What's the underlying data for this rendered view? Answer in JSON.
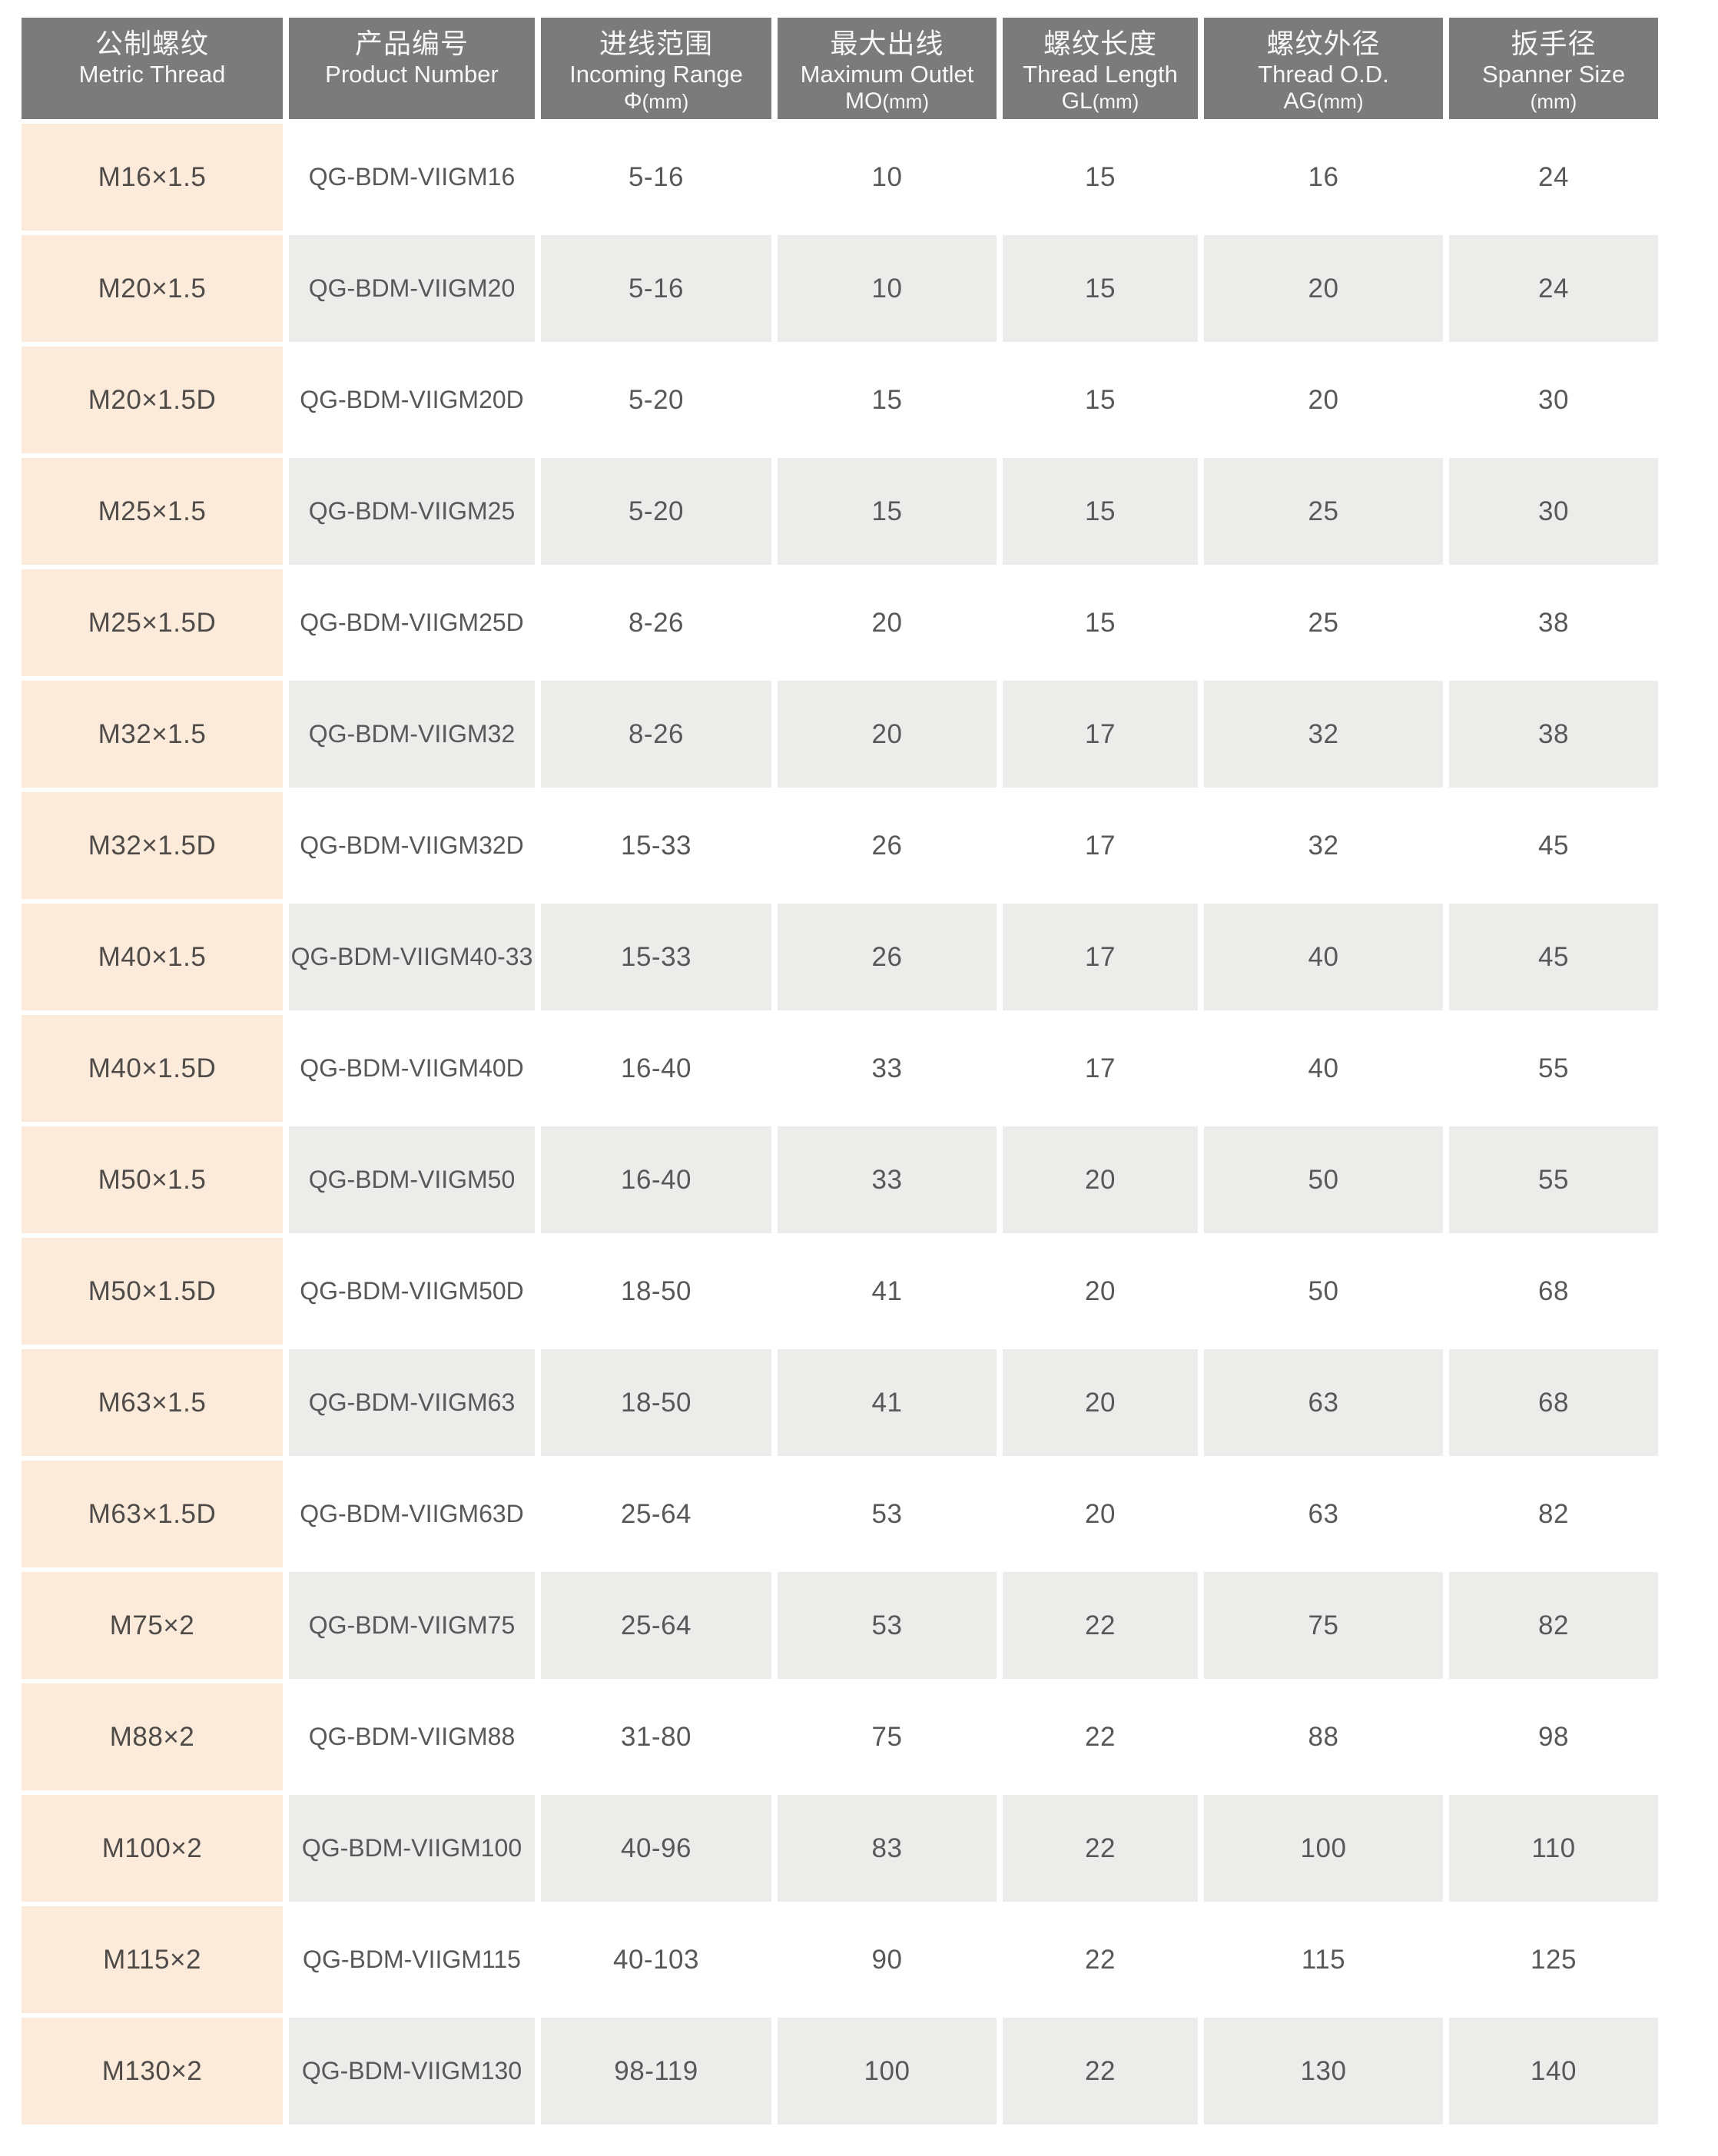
{
  "table": {
    "header": {
      "columns": [
        {
          "zh": "公制螺纹",
          "en": "Metric Thread",
          "unit_big": "",
          "unit_small": ""
        },
        {
          "zh": "产品编号",
          "en": "Product Number",
          "unit_big": "",
          "unit_small": ""
        },
        {
          "zh": "进线范围",
          "en": "Incoming Range",
          "unit_big": "Φ",
          "unit_small": "(mm)"
        },
        {
          "zh": "最大出线",
          "en": "Maximum Outlet",
          "unit_big": "MO",
          "unit_small": "(mm)"
        },
        {
          "zh": "螺纹长度",
          "en": "Thread Length",
          "unit_big": "GL",
          "unit_small": "(mm)"
        },
        {
          "zh": "螺纹外径",
          "en": "Thread O.D.",
          "unit_big": "AG",
          "unit_small": "(mm)"
        },
        {
          "zh": "扳手径",
          "en": "Spanner Size",
          "unit_big": "",
          "unit_small": "(mm)"
        }
      ]
    },
    "rows": [
      [
        "M16×1.5",
        "QG-BDM-VIIGM16",
        "5-16",
        "10",
        "15",
        "16",
        "24"
      ],
      [
        "M20×1.5",
        "QG-BDM-VIIGM20",
        "5-16",
        "10",
        "15",
        "20",
        "24"
      ],
      [
        "M20×1.5D",
        "QG-BDM-VIIGM20D",
        "5-20",
        "15",
        "15",
        "20",
        "30"
      ],
      [
        "M25×1.5",
        "QG-BDM-VIIGM25",
        "5-20",
        "15",
        "15",
        "25",
        "30"
      ],
      [
        "M25×1.5D",
        "QG-BDM-VIIGM25D",
        "8-26",
        "20",
        "15",
        "25",
        "38"
      ],
      [
        "M32×1.5",
        "QG-BDM-VIIGM32",
        "8-26",
        "20",
        "17",
        "32",
        "38"
      ],
      [
        "M32×1.5D",
        "QG-BDM-VIIGM32D",
        "15-33",
        "26",
        "17",
        "32",
        "45"
      ],
      [
        "M40×1.5",
        "QG-BDM-VIIGM40-33",
        "15-33",
        "26",
        "17",
        "40",
        "45"
      ],
      [
        "M40×1.5D",
        "QG-BDM-VIIGM40D",
        "16-40",
        "33",
        "17",
        "40",
        "55"
      ],
      [
        "M50×1.5",
        "QG-BDM-VIIGM50",
        "16-40",
        "33",
        "20",
        "50",
        "55"
      ],
      [
        "M50×1.5D",
        "QG-BDM-VIIGM50D",
        "18-50",
        "41",
        "20",
        "50",
        "68"
      ],
      [
        "M63×1.5",
        "QG-BDM-VIIGM63",
        "18-50",
        "41",
        "20",
        "63",
        "68"
      ],
      [
        "M63×1.5D",
        "QG-BDM-VIIGM63D",
        "25-64",
        "53",
        "20",
        "63",
        "82"
      ],
      [
        "M75×2",
        "QG-BDM-VIIGM75",
        "25-64",
        "53",
        "22",
        "75",
        "82"
      ],
      [
        "M88×2",
        "QG-BDM-VIIGM88",
        "31-80",
        "75",
        "22",
        "88",
        "98"
      ],
      [
        "M100×2",
        "QG-BDM-VIIGM100",
        "40-96",
        "83",
        "22",
        "100",
        "110"
      ],
      [
        "M115×2",
        "QG-BDM-VIIGM115",
        "40-103",
        "90",
        "22",
        "115",
        "125"
      ],
      [
        "M130×2",
        "QG-BDM-VIIGM130",
        "98-119",
        "100",
        "22",
        "130",
        "140"
      ]
    ],
    "colors": {
      "header_bg": "#7b7b7b",
      "header_text": "#f8f7f6",
      "row_gray_bg": "#ececeb",
      "row_white_bg": "#ffffff",
      "thread_col_bg": "#fceadb",
      "data_text": "#57585a",
      "thread_text": "#4f4b48",
      "page_bg": "#ffffff"
    }
  }
}
